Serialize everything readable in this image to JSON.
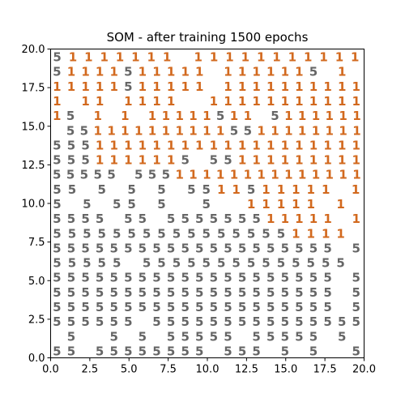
{
  "chart_data": {
    "type": "scatter",
    "title": "SOM - after training 1500 epochs",
    "xlabel": "",
    "ylabel": "",
    "xlim": [
      0,
      20
    ],
    "ylim": [
      0,
      20
    ],
    "x_ticks": [
      "0.0",
      "2.5",
      "5.0",
      "7.5",
      "10.0",
      "12.5",
      "15.0",
      "17.5",
      "20.0"
    ],
    "y_ticks": [
      "0.0",
      "2.5",
      "5.0",
      "7.5",
      "10.0",
      "12.5",
      "15.0",
      "17.5",
      "20.0"
    ],
    "grid": false,
    "marker": "text glyph per map unit (digit of winning class)",
    "glyph_colors": {
      "1": "#d2691e",
      "5": "#666666"
    },
    "grid_rows_top_to_bottom": [
      "51111111 11111111111",
      "51111511111 1111115 1 ",
      "11111511111 1111111111",
      "1 11 1111  11111111111",
      "15 1 1 11111511 5111111",
      " 5511111111115511111111",
      "5551111111111111111111",
      "5551111115 55111111111",
      "55555 55511111111111111",
      "55 5 5 5 5511511111 1",
      "5 5 55 5  5  11111 1 ",
      "5555 55 555555511111 1",
      "55555555555555551111 ",
      "55555555555555555555 5",
      "55555 55555555555555 ",
      "55555555555555555555 5",
      "55555555555555555555 5",
      "55555555555555555555 5",
      "555555 555555555555555",
      " 5  5 5 55555 55555 5 ",
      "55 55555555 555 5 5  5"
    ]
  }
}
